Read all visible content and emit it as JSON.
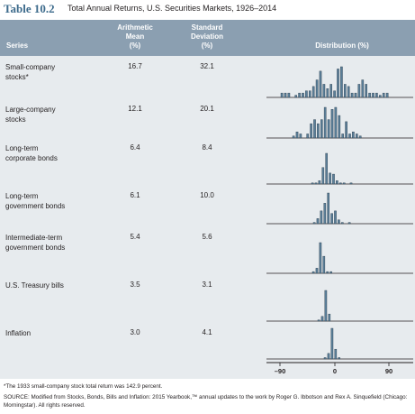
{
  "title": {
    "number": "Table 10.2",
    "text": "Total Annual Returns, U.S. Securities Markets, 1926–2014"
  },
  "header": {
    "series": "Series",
    "mean": [
      "Arithmetic",
      "Mean",
      "(%)"
    ],
    "sd": [
      "Standard",
      "Deviation",
      "(%)"
    ],
    "distribution": "Distribution (%)"
  },
  "rows": [
    {
      "label": [
        "Small-company",
        "stocks*"
      ],
      "mean": "16.7",
      "sd": "32.1"
    },
    {
      "label": [
        "Large-company",
        "stocks"
      ],
      "mean": "12.1",
      "sd": "20.1"
    },
    {
      "label": [
        "Long-term",
        "corporate bonds"
      ],
      "mean": "6.4",
      "sd": "8.4"
    },
    {
      "label": [
        "Long-term",
        "government bonds"
      ],
      "mean": "6.1",
      "sd": "10.0"
    },
    {
      "label": [
        "Intermediate-term",
        "government bonds"
      ],
      "mean": "5.4",
      "sd": "5.6"
    },
    {
      "label": [
        "U.S. Treasury bills"
      ],
      "mean": "3.5",
      "sd": "3.1"
    },
    {
      "label": [
        "Inflation"
      ],
      "mean": "3.0",
      "sd": "4.1"
    }
  ],
  "axis": {
    "ticks": [
      "–90",
      "0",
      "90"
    ]
  },
  "distributions": [
    [
      2,
      2,
      2,
      0,
      1,
      2,
      2,
      3,
      3,
      5,
      8,
      12,
      6,
      4,
      6,
      3,
      13,
      14,
      6,
      5,
      2,
      2,
      6,
      8,
      6,
      2,
      2,
      2,
      1,
      2,
      2
    ],
    [
      1,
      3,
      2,
      0,
      2,
      7,
      9,
      7,
      9,
      15,
      9,
      14,
      15,
      11,
      2,
      8,
      2,
      3,
      2,
      1
    ],
    [
      1,
      1,
      3,
      15,
      28,
      10,
      9,
      3,
      1,
      1,
      0,
      1
    ],
    [
      1,
      4,
      10,
      16,
      24,
      8,
      10,
      3,
      1,
      0,
      1
    ],
    [
      1,
      3,
      18,
      10,
      1,
      1
    ],
    [
      1,
      4,
      26,
      6
    ],
    [
      1,
      4,
      22,
      7,
      1
    ]
  ],
  "footnote": "*The 1933 small-company stock total return was 142.9 percent.",
  "source": [
    "SOURCE: Modified from Stocks, Bonds, Bills and Inflation: 2015 Yearbook,™ annual updates to the work by Roger G. Ibbotson and Rex A. Sinquefield (Chicago:",
    "Morningstar). All rights reserved."
  ]
}
